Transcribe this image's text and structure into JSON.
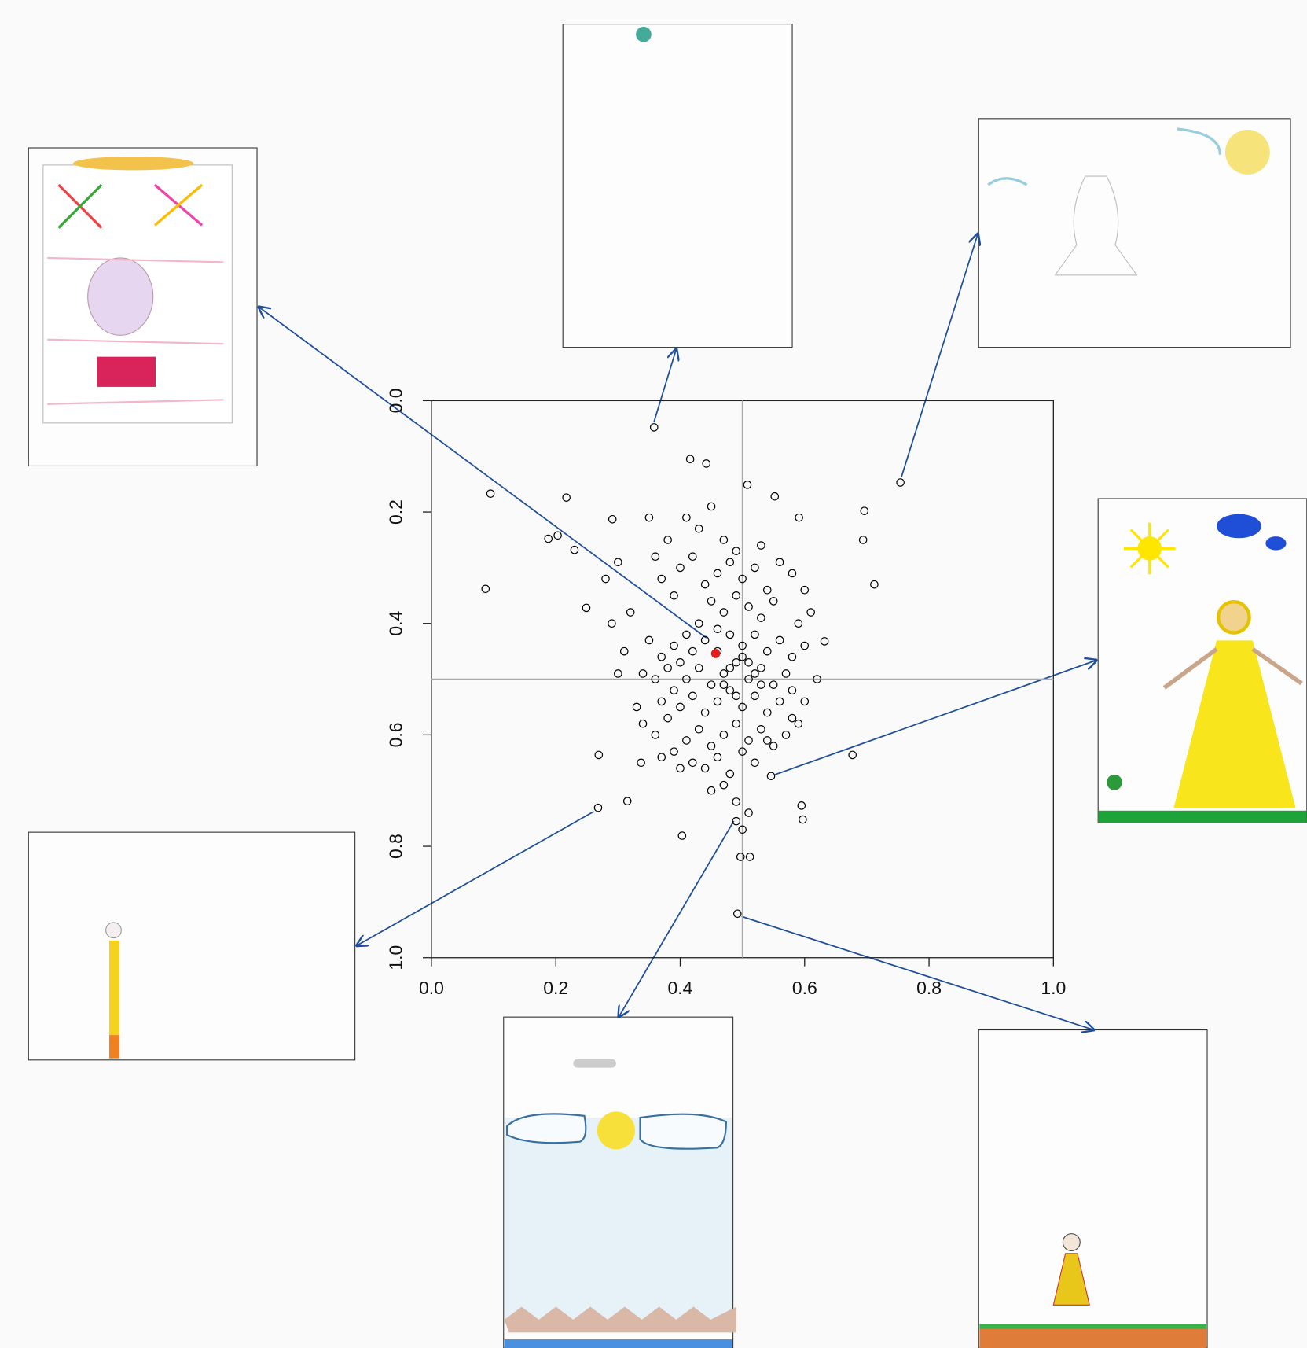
{
  "chart_data": {
    "type": "scatter",
    "x": [
      0.358,
      0.754,
      0.095,
      0.087,
      0.268,
      0.546,
      0.492,
      0.49,
      0.416,
      0.442,
      0.217,
      0.508,
      0.552,
      0.591,
      0.696,
      0.694,
      0.712,
      0.632,
      0.677,
      0.595,
      0.597,
      0.403,
      0.269,
      0.315,
      0.337,
      0.497,
      0.512,
      0.188,
      0.203,
      0.23,
      0.249,
      0.291,
      0.4,
      0.42,
      0.44,
      0.46,
      0.48,
      0.5,
      0.52,
      0.54,
      0.45,
      0.47,
      0.49,
      0.51,
      0.53,
      0.55,
      0.43,
      0.41,
      0.39,
      0.37,
      0.35,
      0.38,
      0.4,
      0.42,
      0.44,
      0.46,
      0.48,
      0.5,
      0.52,
      0.54,
      0.56,
      0.58,
      0.6,
      0.57,
      0.55,
      0.53,
      0.51,
      0.49,
      0.47,
      0.45,
      0.43,
      0.41,
      0.39,
      0.37,
      0.36,
      0.34,
      0.33,
      0.38,
      0.4,
      0.42,
      0.44,
      0.46,
      0.48,
      0.5,
      0.52,
      0.54,
      0.56,
      0.58,
      0.59,
      0.57,
      0.55,
      0.53,
      0.51,
      0.49,
      0.47,
      0.45,
      0.43,
      0.41,
      0.39,
      0.42,
      0.44,
      0.46,
      0.48,
      0.5,
      0.52,
      0.54,
      0.47,
      0.49,
      0.45,
      0.51,
      0.5,
      0.36,
      0.37,
      0.38,
      0.39,
      0.41,
      0.43,
      0.45,
      0.47,
      0.49,
      0.53,
      0.56,
      0.58,
      0.6,
      0.61,
      0.59,
      0.62,
      0.6,
      0.58,
      0.3,
      0.31,
      0.29,
      0.32,
      0.28,
      0.3,
      0.35,
      0.36,
      0.37,
      0.4,
      0.34,
      0.46,
      0.48,
      0.5,
      0.52,
      0.47,
      0.49,
      0.51,
      0.53
    ],
    "values": [
      0.048,
      0.147,
      0.167,
      0.338,
      0.731,
      0.674,
      0.921,
      0.755,
      0.105,
      0.113,
      0.174,
      0.151,
      0.172,
      0.21,
      0.198,
      0.25,
      0.33,
      0.432,
      0.636,
      0.727,
      0.752,
      0.781,
      0.636,
      0.719,
      0.65,
      0.819,
      0.819,
      0.248,
      0.242,
      0.268,
      0.372,
      0.213,
      0.3,
      0.28,
      0.33,
      0.31,
      0.29,
      0.32,
      0.3,
      0.34,
      0.36,
      0.38,
      0.35,
      0.37,
      0.39,
      0.36,
      0.4,
      0.42,
      0.44,
      0.46,
      0.43,
      0.48,
      0.47,
      0.45,
      0.43,
      0.41,
      0.42,
      0.44,
      0.42,
      0.45,
      0.43,
      0.46,
      0.44,
      0.49,
      0.51,
      0.48,
      0.5,
      0.47,
      0.49,
      0.51,
      0.48,
      0.5,
      0.52,
      0.54,
      0.5,
      0.49,
      0.55,
      0.57,
      0.55,
      0.53,
      0.56,
      0.54,
      0.52,
      0.55,
      0.53,
      0.56,
      0.54,
      0.52,
      0.58,
      0.6,
      0.62,
      0.59,
      0.61,
      0.58,
      0.6,
      0.62,
      0.59,
      0.61,
      0.63,
      0.65,
      0.66,
      0.64,
      0.67,
      0.63,
      0.65,
      0.61,
      0.69,
      0.72,
      0.7,
      0.74,
      0.77,
      0.28,
      0.32,
      0.25,
      0.35,
      0.21,
      0.23,
      0.19,
      0.25,
      0.27,
      0.26,
      0.29,
      0.31,
      0.34,
      0.38,
      0.4,
      0.5,
      0.54,
      0.57,
      0.49,
      0.45,
      0.4,
      0.38,
      0.32,
      0.29,
      0.21,
      0.6,
      0.64,
      0.66,
      0.58,
      0.45,
      0.48,
      0.46,
      0.49,
      0.51,
      0.53,
      0.47,
      0.51
    ],
    "color": "#000000",
    "highlight": {
      "x": 0.457,
      "value": 0.454,
      "color": "#e41a1c"
    },
    "reference_lines": {
      "x": 0.5,
      "y": 0.5,
      "color": "#aaaaaa"
    },
    "xlim": [
      0,
      1
    ],
    "ylim": [
      1,
      0
    ],
    "xticks": [
      {
        "value": 0,
        "label": "0.0"
      },
      0.2,
      0.4,
      0.6,
      0.8,
      {
        "value": 1,
        "label": "1.0"
      }
    ],
    "yticks": [
      {
        "value": 0,
        "label": "0.0"
      },
      0.2,
      0.4,
      0.6,
      0.8,
      {
        "value": 1,
        "label": "1.0"
      }
    ]
  }
}
